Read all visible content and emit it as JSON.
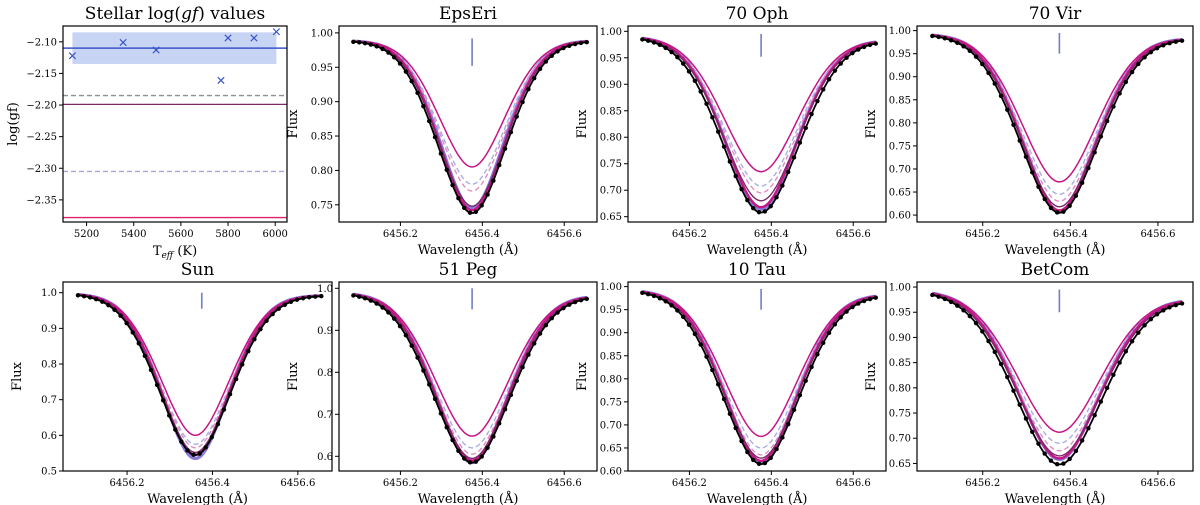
{
  "figure": {
    "colors": {
      "observed": "#000000",
      "fit": "#c71585",
      "dashed_pink": "#e08cc4",
      "dashed_lavender": "#a8b0e0",
      "lavender_solid": "#8878d8",
      "marker": "#6f7fc8",
      "scatter": "#3a55c8",
      "mean_line": "#3a55c8",
      "band": "#c8d4f4",
      "grey_dashed": "#909090",
      "purple_line": "#7a2a6a",
      "red_line": "#e0206c",
      "lavender_dashed_line": "#a8a8e0"
    }
  },
  "chart_data": [
    {
      "type": "scatter",
      "id": "loggf",
      "title_pre": "Stellar log(",
      "title_it": "gf",
      "title_post": ") values",
      "xlabel_pre": "T",
      "xlabel_sub": "eff",
      "xlabel_post": " (K)",
      "ylabel": "log(gf)",
      "xlim": [
        5100,
        6050
      ],
      "ylim": [
        -2.385,
        -2.075
      ],
      "xticks": [
        5200,
        5400,
        5600,
        5800,
        6000
      ],
      "xtick_labels": [
        "5200",
        "5400",
        "5600",
        "5800",
        "6000"
      ],
      "yticks": [
        -2.1,
        -2.15,
        -2.2,
        -2.25,
        -2.3,
        -2.35
      ],
      "ytick_labels": [
        "−2.10",
        "−2.15",
        "−2.20",
        "−2.25",
        "−2.30",
        "−2.35"
      ],
      "points": [
        [
          5140,
          -2.122
        ],
        [
          5355,
          -2.101
        ],
        [
          5495,
          -2.113
        ],
        [
          5770,
          -2.161
        ],
        [
          5800,
          -2.094
        ],
        [
          5910,
          -2.094
        ],
        [
          6005,
          -2.084
        ]
      ],
      "mean": -2.11,
      "band": [
        -2.135,
        -2.085
      ],
      "band_x": [
        5140,
        6005
      ],
      "hlines": [
        {
          "y": -2.185,
          "style": "dashed",
          "color": "#909090"
        },
        {
          "y": -2.199,
          "style": "solid",
          "color": "#7a2a6a"
        },
        {
          "y": -2.305,
          "style": "dashed",
          "color": "#a8a8e0"
        },
        {
          "y": -2.378,
          "style": "solid",
          "color": "#e0206c"
        }
      ]
    },
    {
      "type": "line",
      "id": "epseri",
      "title": "EpsEri",
      "xlabel": "Wavelength (Å)",
      "ylabel": "Flux",
      "xlim": [
        6456.05,
        6456.68
      ],
      "ylim": [
        0.725,
        1.01
      ],
      "xticks": [
        6456.2,
        6456.4,
        6456.6
      ],
      "xtick_labels": [
        "6456.2",
        "6456.4",
        "6456.6"
      ],
      "yticks": [
        0.75,
        0.8,
        0.85,
        0.9,
        0.95,
        1.0
      ],
      "ytick_labels": [
        "0.75",
        "0.80",
        "0.85",
        "0.90",
        "0.95",
        "1.00"
      ],
      "center": 6456.375,
      "marker_x": 6456.375,
      "marker_y": [
        0.952,
        0.992
      ],
      "cont_left": 0.99,
      "cont_right": 0.99,
      "slope_obs": 0.0,
      "sigma": 0.085,
      "minima": {
        "observed": 0.738,
        "m1": 0.805,
        "m2": 0.78,
        "m3": 0.77,
        "m4": 0.748,
        "m5": 0.742,
        "m6": 0.745
      }
    },
    {
      "type": "line",
      "id": "70oph",
      "title": "70 Oph",
      "xlabel": "Wavelength (Å)",
      "ylabel": "Flux",
      "xlim": [
        6456.05,
        6456.68
      ],
      "ylim": [
        0.64,
        1.01
      ],
      "xticks": [
        6456.2,
        6456.4,
        6456.6
      ],
      "xtick_labels": [
        "6456.2",
        "6456.4",
        "6456.6"
      ],
      "yticks": [
        0.65,
        0.7,
        0.75,
        0.8,
        0.85,
        0.9,
        0.95,
        1.0
      ],
      "ytick_labels": [
        "0.65",
        "0.70",
        "0.75",
        "0.80",
        "0.85",
        "0.90",
        "0.95",
        "1.00"
      ],
      "center": 6456.375,
      "marker_x": 6456.375,
      "marker_y": [
        0.952,
        0.995
      ],
      "cont_left": 0.992,
      "cont_right": 0.985,
      "slope_obs": 0.0,
      "sigma": 0.095,
      "minima": {
        "observed": 0.658,
        "m1": 0.735,
        "m2": 0.708,
        "m3": 0.695,
        "m4": 0.68,
        "m5": 0.668,
        "m6": 0.664
      }
    },
    {
      "type": "line",
      "id": "70vir",
      "title": "70 Vir",
      "xlabel": "Wavelength (Å)",
      "ylabel": "Flux",
      "xlim": [
        6456.05,
        6456.68
      ],
      "ylim": [
        0.585,
        1.01
      ],
      "xticks": [
        6456.2,
        6456.4,
        6456.6
      ],
      "xtick_labels": [
        "6456.2",
        "6456.4",
        "6456.6"
      ],
      "yticks": [
        0.6,
        0.65,
        0.7,
        0.75,
        0.8,
        0.85,
        0.9,
        0.95,
        1.0
      ],
      "ytick_labels": [
        "0.60",
        "0.65",
        "0.70",
        "0.75",
        "0.80",
        "0.85",
        "0.90",
        "0.95",
        "1.00"
      ],
      "center": 6456.375,
      "marker_x": 6456.375,
      "marker_y": [
        0.95,
        0.995
      ],
      "cont_left": 0.995,
      "cont_right": 0.985,
      "slope_obs": 0.0,
      "sigma": 0.09,
      "minima": {
        "observed": 0.605,
        "m1": 0.672,
        "m2": 0.645,
        "m3": 0.63,
        "m4": 0.618,
        "m5": 0.61,
        "m6": 0.608
      }
    },
    {
      "type": "line",
      "id": "sun",
      "title": "Sun",
      "xlabel": "Wavelength (Å)",
      "ylabel": "Flux",
      "xlim": [
        6456.05,
        6456.68
      ],
      "ylim": [
        0.5,
        1.03
      ],
      "xticks": [
        6456.2,
        6456.4,
        6456.6
      ],
      "xtick_labels": [
        "6456.2",
        "6456.4",
        "6456.6"
      ],
      "yticks": [
        0.5,
        0.6,
        0.7,
        0.8,
        0.9,
        1.0
      ],
      "ytick_labels": [
        "0.5",
        "0.6",
        "0.7",
        "0.8",
        "0.9",
        "1.0"
      ],
      "center": 6456.36,
      "marker_x": 6456.375,
      "marker_y": [
        0.955,
        1.0
      ],
      "cont_left": 1.0,
      "cont_right": 0.995,
      "slope_obs": 0.0,
      "sigma": 0.085,
      "minima": {
        "observed": 0.545,
        "m1": 0.6,
        "m2": 0.575,
        "m3": 0.565,
        "m4": 0.552,
        "m5": 0.545,
        "m6": 0.535
      }
    },
    {
      "type": "line",
      "id": "51peg",
      "title": "51 Peg",
      "xlabel": "Wavelength (Å)",
      "ylabel": "Flux",
      "xlim": [
        6456.05,
        6456.68
      ],
      "ylim": [
        0.565,
        1.015
      ],
      "xticks": [
        6456.2,
        6456.4,
        6456.6
      ],
      "xtick_labels": [
        "6456.2",
        "6456.4",
        "6456.6"
      ],
      "yticks": [
        0.6,
        0.7,
        0.8,
        0.9,
        1.0
      ],
      "ytick_labels": [
        "0.6",
        "0.7",
        "0.8",
        "0.9",
        "1.0"
      ],
      "center": 6456.375,
      "marker_x": 6456.375,
      "marker_y": [
        0.95,
        1.0
      ],
      "cont_left": 0.992,
      "cont_right": 0.985,
      "slope_obs": 0.0,
      "sigma": 0.095,
      "minima": {
        "observed": 0.585,
        "m1": 0.648,
        "m2": 0.62,
        "m3": 0.605,
        "m4": 0.595,
        "m5": 0.59,
        "m6": 0.585
      }
    },
    {
      "type": "line",
      "id": "10tau",
      "title": "10 Tau",
      "xlabel": "Wavelength (Å)",
      "ylabel": "Flux",
      "xlim": [
        6456.05,
        6456.68
      ],
      "ylim": [
        0.6,
        1.01
      ],
      "xticks": [
        6456.2,
        6456.4,
        6456.6
      ],
      "xtick_labels": [
        "6456.2",
        "6456.4",
        "6456.6"
      ],
      "yticks": [
        0.6,
        0.65,
        0.7,
        0.75,
        0.8,
        0.85,
        0.9,
        0.95,
        1.0
      ],
      "ytick_labels": [
        "0.60",
        "0.65",
        "0.70",
        "0.75",
        "0.80",
        "0.85",
        "0.90",
        "0.95",
        "1.00"
      ],
      "center": 6456.375,
      "marker_x": 6456.375,
      "marker_y": [
        0.95,
        0.995
      ],
      "cont_left": 0.995,
      "cont_right": 0.985,
      "slope_obs": 0.0,
      "sigma": 0.095,
      "minima": {
        "observed": 0.615,
        "m1": 0.675,
        "m2": 0.65,
        "m3": 0.635,
        "m4": 0.628,
        "m5": 0.622,
        "m6": 0.62
      }
    },
    {
      "type": "line",
      "id": "betcom",
      "title": "BetCom",
      "xlabel": "Wavelength (Å)",
      "ylabel": "Flux",
      "xlim": [
        6456.05,
        6456.68
      ],
      "ylim": [
        0.635,
        1.01
      ],
      "xticks": [
        6456.2,
        6456.4,
        6456.6
      ],
      "xtick_labels": [
        "6456.2",
        "6456.4",
        "6456.6"
      ],
      "yticks": [
        0.65,
        0.7,
        0.75,
        0.8,
        0.85,
        0.9,
        0.95,
        1.0
      ],
      "ytick_labels": [
        "0.65",
        "0.70",
        "0.75",
        "0.80",
        "0.85",
        "0.90",
        "0.95",
        "1.00"
      ],
      "center": 6456.375,
      "marker_x": 6456.375,
      "marker_y": [
        0.95,
        0.995
      ],
      "cont_left": 0.995,
      "cont_right": 0.978,
      "slope_obs": 0.0,
      "sigma": 0.1,
      "minima": {
        "observed": 0.648,
        "m1": 0.712,
        "m2": 0.69,
        "m3": 0.675,
        "m4": 0.665,
        "m5": 0.66,
        "m6": 0.658
      }
    }
  ]
}
